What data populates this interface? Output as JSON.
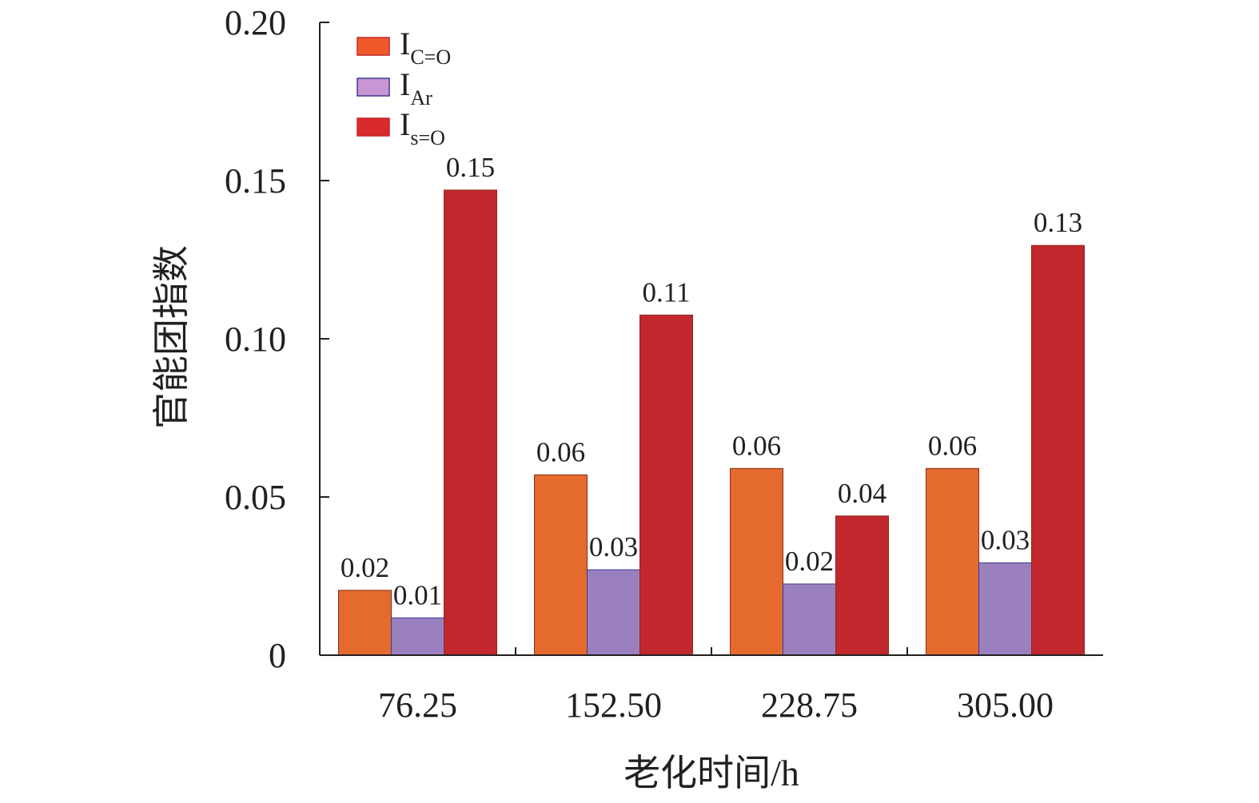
{
  "chart_data": {
    "type": "bar",
    "title": "",
    "xlabel": "老化时间/h",
    "ylabel": "官能团指数",
    "ylim": [
      0,
      0.2
    ],
    "yticks": [
      0,
      0.05,
      0.1,
      0.15,
      0.2
    ],
    "ytick_labels": [
      "0",
      "0.05",
      "0.10",
      "0.15",
      "0.20"
    ],
    "categories": [
      "76.25",
      "152.50",
      "228.75",
      "305.00"
    ],
    "legend_position": "top-left",
    "series": [
      {
        "name": "I",
        "subscript": "C=O",
        "color": "#e46b2d",
        "legend_color": "#f05a28",
        "values": [
          0.0205,
          0.057,
          0.059,
          0.059
        ],
        "labels": [
          "0.02",
          "0.06",
          "0.06",
          "0.06"
        ]
      },
      {
        "name": "I",
        "subscript": "Ar",
        "color": "#9b80bf",
        "legend_color": "#c995d3",
        "values": [
          0.0118,
          0.027,
          0.0225,
          0.0292
        ],
        "labels": [
          "0.01",
          "0.03",
          "0.02",
          "0.03"
        ]
      },
      {
        "name": "I",
        "subscript": "s=O",
        "color": "#c1272d",
        "legend_color": "#d92b2b",
        "values": [
          0.147,
          0.1075,
          0.044,
          0.1295
        ],
        "labels": [
          "0.15",
          "0.11",
          "0.04",
          "0.13"
        ]
      }
    ]
  }
}
